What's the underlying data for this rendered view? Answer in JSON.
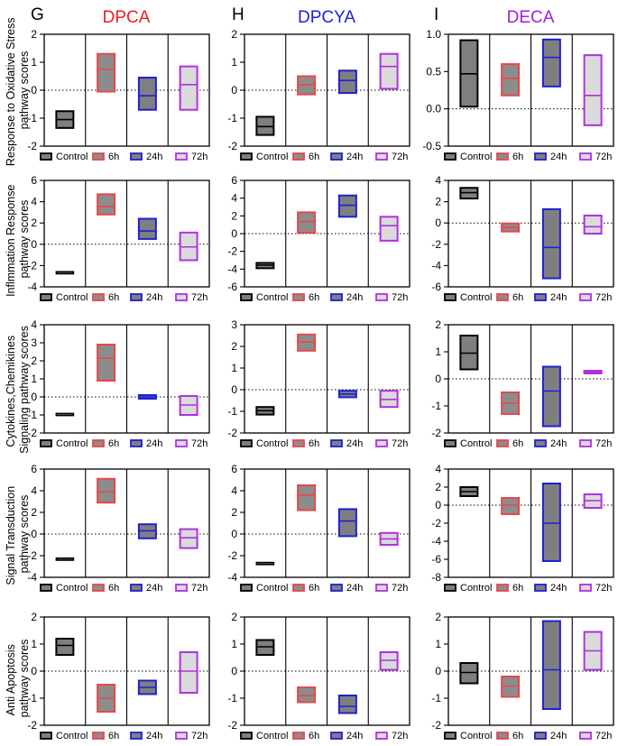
{
  "columns": [
    {
      "letter": "G",
      "title": "DPCA",
      "color": "#ea1c24"
    },
    {
      "letter": "H",
      "title": "DPCYA",
      "color": "#1f1fd6"
    },
    {
      "letter": "I",
      "title": "DECA",
      "color": "#a51fd6"
    }
  ],
  "groups": [
    {
      "name": "Control",
      "edge": "#000000",
      "fill": "#7f7f7f"
    },
    {
      "name": "6h",
      "edge": "#e8474a",
      "fill": "#8c8c8c"
    },
    {
      "name": "24h",
      "edge": "#2020d0",
      "fill": "#7f7f7f"
    },
    {
      "name": "72h",
      "edge": "#b030e0",
      "fill": "#dadada"
    }
  ],
  "rows": [
    {
      "ylabel": [
        "Response to Oxidative Stress",
        "pathway scores"
      ]
    },
    {
      "ylabel": [
        "Inflmmation Response",
        "pathway scores"
      ]
    },
    {
      "ylabel": [
        "Cytokines,Chemikines",
        "Signaling pathway scores"
      ]
    },
    {
      "ylabel": [
        "Signal Transduction",
        "pathway scores"
      ]
    },
    {
      "ylabel": [
        "Anti Apoptosis",
        "pathway scores"
      ]
    }
  ],
  "chart_data": [
    {
      "type": "floating-bar",
      "row": 0,
      "col": 0,
      "ylim": [
        -2,
        2
      ],
      "yticks": [
        -2,
        -1,
        0,
        1,
        2
      ],
      "tick_labels": [
        "-2",
        "-1",
        "0",
        "1",
        "2"
      ],
      "categories": [
        "Control",
        "6h",
        "24h",
        "72h"
      ],
      "boxes": [
        {
          "min": -1.35,
          "max": -0.75,
          "mean": -1.05
        },
        {
          "min": -0.05,
          "max": 1.3,
          "mean": 0.75
        },
        {
          "min": -0.7,
          "max": 0.45,
          "mean": -0.2
        },
        {
          "min": -0.7,
          "max": 0.85,
          "mean": 0.2
        }
      ]
    },
    {
      "type": "floating-bar",
      "row": 0,
      "col": 1,
      "ylim": [
        -2,
        2
      ],
      "yticks": [
        -2,
        -1,
        0,
        1,
        2
      ],
      "tick_labels": [
        "-2",
        "-1",
        "0",
        "1",
        "2"
      ],
      "categories": [
        "Control",
        "6h",
        "24h",
        "72h"
      ],
      "boxes": [
        {
          "min": -1.6,
          "max": -0.95,
          "mean": -1.3
        },
        {
          "min": -0.15,
          "max": 0.5,
          "mean": 0.2
        },
        {
          "min": -0.1,
          "max": 0.7,
          "mean": 0.35
        },
        {
          "min": 0.05,
          "max": 1.3,
          "mean": 0.85
        }
      ]
    },
    {
      "type": "floating-bar",
      "row": 0,
      "col": 2,
      "ylim": [
        -0.5,
        1.0
      ],
      "yticks": [
        -0.5,
        0.0,
        0.5,
        1.0
      ],
      "tick_labels": [
        "-0.5",
        "0.0",
        "0.5",
        "1.0"
      ],
      "categories": [
        "Control",
        "6h",
        "24h",
        "72h"
      ],
      "boxes": [
        {
          "min": 0.03,
          "max": 0.92,
          "mean": 0.47
        },
        {
          "min": 0.18,
          "max": 0.6,
          "mean": 0.41
        },
        {
          "min": 0.3,
          "max": 0.93,
          "mean": 0.69
        },
        {
          "min": -0.22,
          "max": 0.72,
          "mean": 0.18
        }
      ]
    },
    {
      "type": "floating-bar",
      "row": 1,
      "col": 0,
      "ylim": [
        -4,
        6
      ],
      "yticks": [
        -4,
        -2,
        0,
        2,
        4,
        6
      ],
      "tick_labels": [
        "-4",
        "-2",
        "0",
        "2",
        "4",
        "6"
      ],
      "categories": [
        "Control",
        "6h",
        "24h",
        "72h"
      ],
      "boxes": [
        {
          "min": -2.7,
          "max": -2.65,
          "mean": -2.68
        },
        {
          "min": 2.8,
          "max": 4.7,
          "mean": 3.55
        },
        {
          "min": 0.5,
          "max": 2.4,
          "mean": 1.25
        },
        {
          "min": -1.5,
          "max": 1.1,
          "mean": -0.25
        }
      ]
    },
    {
      "type": "floating-bar",
      "row": 1,
      "col": 1,
      "ylim": [
        -6,
        6
      ],
      "yticks": [
        -6,
        -4,
        -2,
        0,
        2,
        4,
        6
      ],
      "tick_labels": [
        "-6",
        "-4",
        "-2",
        "0",
        "2",
        "4",
        "6"
      ],
      "categories": [
        "Control",
        "6h",
        "24h",
        "72h"
      ],
      "boxes": [
        {
          "min": -3.9,
          "max": -3.3,
          "mean": -3.55
        },
        {
          "min": 0.1,
          "max": 2.4,
          "mean": 1.35
        },
        {
          "min": 1.9,
          "max": 4.3,
          "mean": 3.2
        },
        {
          "min": -0.8,
          "max": 1.9,
          "mean": 0.9
        }
      ]
    },
    {
      "type": "floating-bar",
      "row": 1,
      "col": 2,
      "ylim": [
        -6,
        4
      ],
      "yticks": [
        -6,
        -4,
        -2,
        0,
        2,
        4
      ],
      "tick_labels": [
        "-6",
        "-4",
        "-2",
        "0",
        "2",
        "4"
      ],
      "categories": [
        "Control",
        "6h",
        "24h",
        "72h"
      ],
      "boxes": [
        {
          "min": 2.3,
          "max": 3.3,
          "mean": 2.85
        },
        {
          "min": -0.8,
          "max": -0.05,
          "mean": -0.4
        },
        {
          "min": -5.2,
          "max": 1.3,
          "mean": -2.3
        },
        {
          "min": -1.0,
          "max": 0.7,
          "mean": -0.35
        }
      ]
    },
    {
      "type": "floating-bar",
      "row": 2,
      "col": 0,
      "ylim": [
        -2,
        4
      ],
      "yticks": [
        -2,
        -1,
        0,
        1,
        2,
        3,
        4
      ],
      "tick_labels": [
        "-2",
        "-1",
        "0",
        "1",
        "2",
        "3",
        "4"
      ],
      "categories": [
        "Control",
        "6h",
        "24h",
        "72h"
      ],
      "boxes": [
        {
          "min": -1.0,
          "max": -0.95,
          "mean": -0.97
        },
        {
          "min": 0.9,
          "max": 2.9,
          "mean": 2.15
        },
        {
          "min": -0.1,
          "max": 0.1,
          "mean": 0.0
        },
        {
          "min": -1.0,
          "max": 0.05,
          "mean": -0.45
        }
      ]
    },
    {
      "type": "floating-bar",
      "row": 2,
      "col": 1,
      "ylim": [
        -2,
        3
      ],
      "yticks": [
        -2,
        -1,
        0,
        1,
        2,
        3
      ],
      "tick_labels": [
        "-2",
        "-1",
        "0",
        "1",
        "2",
        "3"
      ],
      "categories": [
        "Control",
        "6h",
        "24h",
        "72h"
      ],
      "boxes": [
        {
          "min": -1.15,
          "max": -0.8,
          "mean": -0.97
        },
        {
          "min": 1.8,
          "max": 2.55,
          "mean": 2.2
        },
        {
          "min": -0.35,
          "max": -0.05,
          "mean": -0.2
        },
        {
          "min": -0.8,
          "max": -0.05,
          "mean": -0.45
        }
      ]
    },
    {
      "type": "floating-bar",
      "row": 2,
      "col": 2,
      "ylim": [
        -2,
        2
      ],
      "yticks": [
        -2,
        -1,
        0,
        1,
        2
      ],
      "tick_labels": [
        "-2",
        "-1",
        "0",
        "1",
        "2"
      ],
      "categories": [
        "Control",
        "6h",
        "24h",
        "72h"
      ],
      "boxes": [
        {
          "min": 0.35,
          "max": 1.6,
          "mean": 0.95
        },
        {
          "min": -1.3,
          "max": -0.5,
          "mean": -0.9
        },
        {
          "min": -1.75,
          "max": 0.45,
          "mean": -0.45
        },
        {
          "min": 0.2,
          "max": 0.3,
          "mean": 0.25
        }
      ]
    },
    {
      "type": "floating-bar",
      "row": 3,
      "col": 0,
      "ylim": [
        -4,
        6
      ],
      "yticks": [
        -4,
        -2,
        0,
        2,
        4,
        6
      ],
      "tick_labels": [
        "-4",
        "-2",
        "0",
        "2",
        "4",
        "6"
      ],
      "categories": [
        "Control",
        "6h",
        "24h",
        "72h"
      ],
      "boxes": [
        {
          "min": -2.35,
          "max": -2.3,
          "mean": -2.33
        },
        {
          "min": 2.9,
          "max": 5.1,
          "mean": 3.9
        },
        {
          "min": -0.4,
          "max": 0.9,
          "mean": 0.3
        },
        {
          "min": -1.3,
          "max": 0.45,
          "mean": -0.35
        }
      ]
    },
    {
      "type": "floating-bar",
      "row": 3,
      "col": 1,
      "ylim": [
        -4,
        6
      ],
      "yticks": [
        -4,
        -2,
        0,
        2,
        4,
        6
      ],
      "tick_labels": [
        "-4",
        "-2",
        "0",
        "2",
        "4",
        "6"
      ],
      "categories": [
        "Control",
        "6h",
        "24h",
        "72h"
      ],
      "boxes": [
        {
          "min": -2.75,
          "max": -2.7,
          "mean": -2.72
        },
        {
          "min": 2.2,
          "max": 4.5,
          "mean": 3.6
        },
        {
          "min": -0.2,
          "max": 2.3,
          "mean": 1.2
        },
        {
          "min": -1.0,
          "max": 0.1,
          "mean": -0.45
        }
      ]
    },
    {
      "type": "floating-bar",
      "row": 3,
      "col": 2,
      "ylim": [
        -8,
        4
      ],
      "yticks": [
        -8,
        -6,
        -4,
        -2,
        0,
        2,
        4
      ],
      "tick_labels": [
        "-8",
        "-6",
        "-4",
        "-2",
        "0",
        "2",
        "4"
      ],
      "categories": [
        "Control",
        "6h",
        "24h",
        "72h"
      ],
      "boxes": [
        {
          "min": 1.0,
          "max": 2.0,
          "mean": 1.5
        },
        {
          "min": -1.0,
          "max": 0.8,
          "mean": 0.0
        },
        {
          "min": -6.2,
          "max": 2.4,
          "mean": -2.0
        },
        {
          "min": -0.3,
          "max": 1.2,
          "mean": 0.5
        }
      ]
    },
    {
      "type": "floating-bar",
      "row": 4,
      "col": 0,
      "ylim": [
        -2,
        2
      ],
      "yticks": [
        -2,
        -1,
        0,
        1,
        2
      ],
      "tick_labels": [
        "-2",
        "-1",
        "0",
        "1",
        "2"
      ],
      "categories": [
        "Control",
        "6h",
        "24h",
        "72h"
      ],
      "boxes": [
        {
          "min": 0.6,
          "max": 1.2,
          "mean": 0.95
        },
        {
          "min": -1.5,
          "max": -0.5,
          "mean": -1.0
        },
        {
          "min": -0.85,
          "max": -0.35,
          "mean": -0.6
        },
        {
          "min": -0.8,
          "max": 0.7,
          "mean": 0.0
        }
      ]
    },
    {
      "type": "floating-bar",
      "row": 4,
      "col": 1,
      "ylim": [
        -2,
        2
      ],
      "yticks": [
        -2,
        -1,
        0,
        1,
        2
      ],
      "tick_labels": [
        "-2",
        "-1",
        "0",
        "1",
        "2"
      ],
      "categories": [
        "Control",
        "6h",
        "24h",
        "72h"
      ],
      "boxes": [
        {
          "min": 0.6,
          "max": 1.15,
          "mean": 0.9
        },
        {
          "min": -1.15,
          "max": -0.6,
          "mean": -0.9
        },
        {
          "min": -1.55,
          "max": -0.9,
          "mean": -1.3
        },
        {
          "min": 0.05,
          "max": 0.7,
          "mean": 0.4
        }
      ]
    },
    {
      "type": "floating-bar",
      "row": 4,
      "col": 2,
      "ylim": [
        -2,
        2
      ],
      "yticks": [
        -2,
        -1,
        0,
        1,
        2
      ],
      "tick_labels": [
        "-2",
        "-1",
        "0",
        "1",
        "2"
      ],
      "categories": [
        "Control",
        "6h",
        "24h",
        "72h"
      ],
      "boxes": [
        {
          "min": -0.45,
          "max": 0.3,
          "mean": -0.05
        },
        {
          "min": -0.95,
          "max": -0.2,
          "mean": -0.55
        },
        {
          "min": -1.4,
          "max": 1.85,
          "mean": 0.05
        },
        {
          "min": 0.05,
          "max": 1.45,
          "mean": 0.75
        }
      ]
    }
  ]
}
